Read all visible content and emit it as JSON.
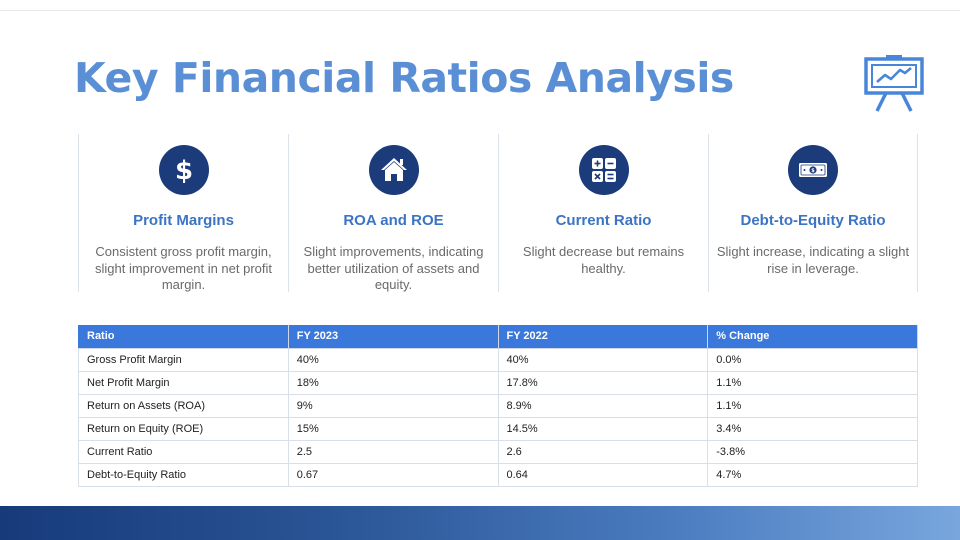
{
  "slide": {
    "title": "Key Financial Ratios Analysis",
    "header_icon": "presentation-board-icon"
  },
  "cards": [
    {
      "icon": "dollar-icon",
      "title": "Profit Margins",
      "description": "Consistent gross profit margin, slight improvement in net profit margin."
    },
    {
      "icon": "house-icon",
      "title": "ROA and ROE",
      "description": "Slight improvements, indicating better utilization of assets and equity."
    },
    {
      "icon": "calculator-icon",
      "title": "Current Ratio",
      "description": "Slight decrease but remains healthy."
    },
    {
      "icon": "banknote-icon",
      "title": "Debt-to-Equity Ratio",
      "description": "Slight increase, indicating a slight rise in leverage."
    }
  ],
  "table": {
    "headers": [
      "Ratio",
      "FY 2023",
      "FY 2022",
      "% Change"
    ],
    "rows": [
      [
        "Gross Profit Margin",
        "40%",
        "40%",
        "0.0%"
      ],
      [
        "Net Profit Margin",
        "18%",
        "17.8%",
        "1.1%"
      ],
      [
        "Return on Assets (ROA)",
        "9%",
        "8.9%",
        "1.1%"
      ],
      [
        "Return on Equity (ROE)",
        "15%",
        "14.5%",
        "3.4%"
      ],
      [
        "Current Ratio",
        "2.5",
        "2.6",
        "-3.8%"
      ],
      [
        "Debt-to-Equity Ratio",
        "0.67",
        "0.64",
        "4.7%"
      ]
    ]
  },
  "colors": {
    "title": "#5a8fd6",
    "icon_circle": "#1c3b7a",
    "card_title": "#3c74c4",
    "table_header": "#3a78db"
  }
}
